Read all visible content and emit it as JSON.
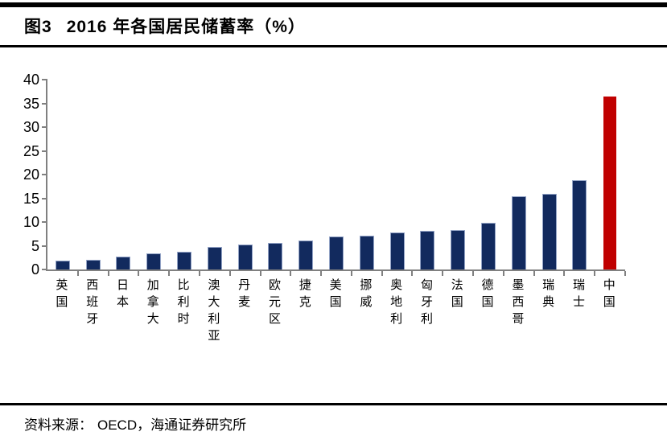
{
  "header": {
    "figure_label": "图3",
    "title": "2016 年各国居民储蓄率（%）"
  },
  "footer": {
    "source_prefix": "资料来源：",
    "source_body": "OECD，海通证券研究所"
  },
  "colors": {
    "bar_navy": "#122A5E",
    "bar_red": "#C00000",
    "axis_gray": "#808080",
    "rule_black": "#000000"
  },
  "chart_data": {
    "type": "bar",
    "title": "2016 年各国居民储蓄率（%）",
    "categories": [
      "英国",
      "西班牙",
      "日本",
      "加拿大",
      "比利时",
      "澳大利亚",
      "丹麦",
      "欧元区",
      "捷克",
      "美国",
      "挪威",
      "奥地利",
      "匈牙利",
      "法国",
      "德国",
      "墨西哥",
      "瑞典",
      "瑞士",
      "中国"
    ],
    "values": [
      1.7,
      1.9,
      2.5,
      3.3,
      3.6,
      4.6,
      5.0,
      5.5,
      5.9,
      6.7,
      7.0,
      7.6,
      7.9,
      8.1,
      9.7,
      15.3,
      15.8,
      18.7,
      36.4
    ],
    "highlight_category": "中国",
    "xlabel": "",
    "ylabel": "",
    "ylim": [
      0,
      40
    ],
    "yticks": [
      0,
      5,
      10,
      15,
      20,
      25,
      30,
      35,
      40
    ],
    "grid": false,
    "legend": false,
    "bar_color": "#122A5E",
    "highlight_color": "#C00000"
  }
}
